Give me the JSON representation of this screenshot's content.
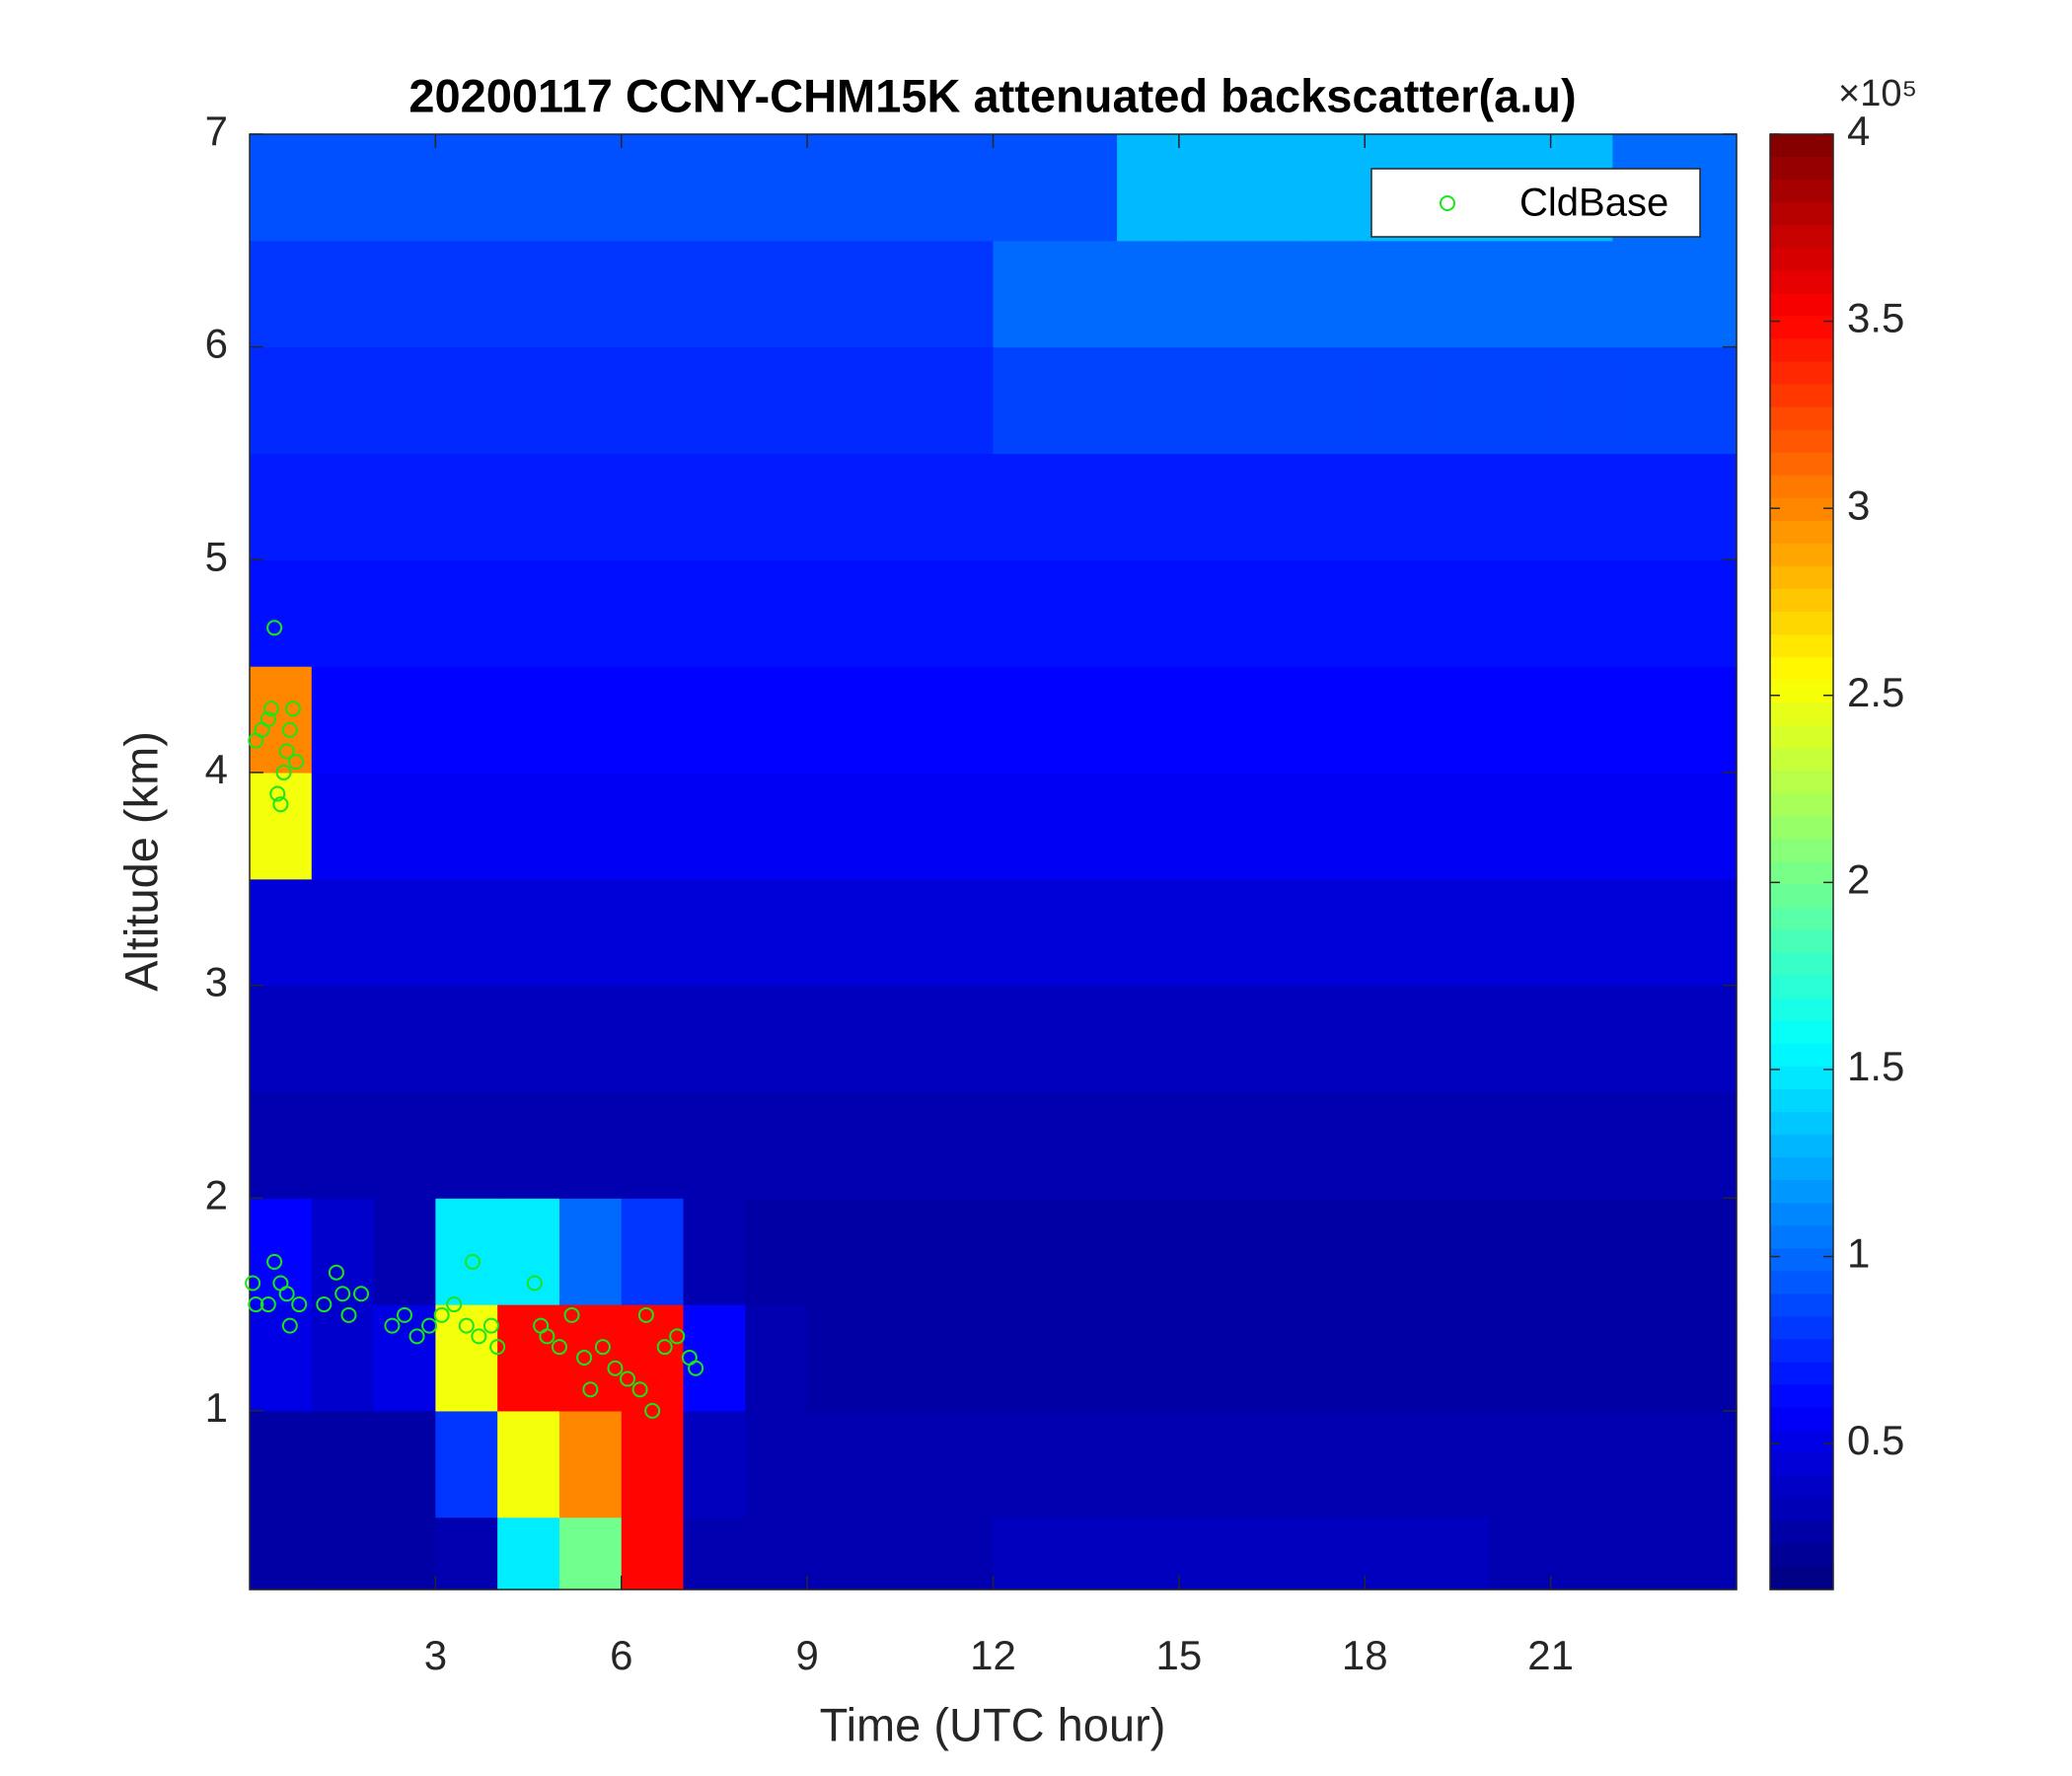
{
  "chart_data": {
    "type": "heatmap",
    "title": "20200117 CCNY-CHM15K attenuated backscatter(a.u)",
    "xlabel": "Time (UTC hour)",
    "ylabel": "Altitude (km)",
    "xlim": [
      0,
      24
    ],
    "ylim": [
      0.16,
      7
    ],
    "xticks": [
      3,
      6,
      9,
      12,
      15,
      18,
      21
    ],
    "yticks": [
      1,
      2,
      3,
      4,
      5,
      6,
      7
    ],
    "xbins": [
      0,
      1,
      2,
      3,
      4,
      5,
      6,
      7,
      8,
      9,
      10,
      11,
      12,
      13,
      14,
      15,
      16,
      17,
      18,
      19,
      20,
      21,
      22,
      23,
      24
    ],
    "ybins": [
      0.16,
      0.5,
      1,
      1.5,
      2,
      2.5,
      3,
      3.5,
      4,
      4.5,
      5,
      5.5,
      6,
      6.5,
      7
    ],
    "z": [
      [
        0.25,
        0.25,
        0.25,
        0.3,
        1.5,
        2,
        3.5,
        0.3,
        0.3,
        0.3,
        0.3,
        0.3,
        0.35,
        0.35,
        0.35,
        0.35,
        0.35,
        0.35,
        0.35,
        0.35,
        0.3,
        0.3,
        0.3,
        0.3
      ],
      [
        0.25,
        0.25,
        0.25,
        0.8,
        2.5,
        3,
        3.5,
        0.35,
        0.3,
        0.3,
        0.3,
        0.3,
        0.3,
        0.3,
        0.3,
        0.3,
        0.3,
        0.3,
        0.3,
        0.3,
        0.3,
        0.3,
        0.3,
        0.3
      ],
      [
        0.5,
        0.4,
        0.5,
        2.5,
        3.5,
        3.5,
        3.5,
        0.6,
        0.3,
        0.25,
        0.25,
        0.25,
        0.25,
        0.25,
        0.25,
        0.25,
        0.25,
        0.25,
        0.25,
        0.25,
        0.25,
        0.25,
        0.25,
        0.25
      ],
      [
        0.6,
        0.4,
        0.3,
        1.5,
        1.5,
        1,
        0.8,
        0.3,
        0.25,
        0.25,
        0.25,
        0.25,
        0.25,
        0.25,
        0.25,
        0.25,
        0.25,
        0.25,
        0.25,
        0.25,
        0.25,
        0.25,
        0.25,
        0.25
      ],
      [
        0.3,
        0.3,
        0.3,
        0.3,
        0.3,
        0.3,
        0.3,
        0.3,
        0.3,
        0.3,
        0.3,
        0.3,
        0.3,
        0.3,
        0.3,
        0.3,
        0.3,
        0.3,
        0.3,
        0.3,
        0.3,
        0.3,
        0.3,
        0.3
      ],
      [
        0.35,
        0.35,
        0.35,
        0.35,
        0.35,
        0.35,
        0.35,
        0.35,
        0.35,
        0.35,
        0.35,
        0.35,
        0.35,
        0.35,
        0.35,
        0.35,
        0.35,
        0.35,
        0.35,
        0.35,
        0.35,
        0.35,
        0.35,
        0.35
      ],
      [
        0.45,
        0.45,
        0.45,
        0.45,
        0.45,
        0.45,
        0.45,
        0.45,
        0.45,
        0.45,
        0.45,
        0.45,
        0.45,
        0.45,
        0.45,
        0.45,
        0.45,
        0.45,
        0.45,
        0.45,
        0.45,
        0.45,
        0.45,
        0.45
      ],
      [
        2.5,
        0.55,
        0.55,
        0.55,
        0.55,
        0.55,
        0.55,
        0.55,
        0.55,
        0.55,
        0.55,
        0.55,
        0.55,
        0.55,
        0.55,
        0.55,
        0.55,
        0.55,
        0.55,
        0.55,
        0.55,
        0.55,
        0.55,
        0.55
      ],
      [
        3,
        0.6,
        0.6,
        0.6,
        0.6,
        0.6,
        0.6,
        0.6,
        0.6,
        0.6,
        0.6,
        0.6,
        0.6,
        0.6,
        0.6,
        0.6,
        0.6,
        0.6,
        0.6,
        0.6,
        0.6,
        0.6,
        0.6,
        0.6
      ],
      [
        0.65,
        0.65,
        0.65,
        0.65,
        0.65,
        0.65,
        0.65,
        0.65,
        0.65,
        0.65,
        0.65,
        0.65,
        0.65,
        0.65,
        0.65,
        0.65,
        0.65,
        0.65,
        0.65,
        0.65,
        0.65,
        0.65,
        0.65,
        0.65
      ],
      [
        0.7,
        0.7,
        0.7,
        0.7,
        0.7,
        0.7,
        0.7,
        0.7,
        0.7,
        0.7,
        0.7,
        0.7,
        0.7,
        0.7,
        0.7,
        0.7,
        0.7,
        0.7,
        0.7,
        0.7,
        0.7,
        0.7,
        0.7,
        0.7
      ],
      [
        0.75,
        0.75,
        0.75,
        0.75,
        0.75,
        0.75,
        0.75,
        0.75,
        0.75,
        0.75,
        0.75,
        0.75,
        0.85,
        0.85,
        0.85,
        0.85,
        0.85,
        0.85,
        0.85,
        0.85,
        0.85,
        0.85,
        0.85,
        0.85
      ],
      [
        0.8,
        0.8,
        0.8,
        0.8,
        0.8,
        0.8,
        0.8,
        0.8,
        0.8,
        0.8,
        0.8,
        0.8,
        1,
        1,
        1,
        1,
        1,
        1,
        1,
        1,
        1,
        1,
        1,
        1
      ],
      [
        0.9,
        0.9,
        0.9,
        0.9,
        0.9,
        0.9,
        0.9,
        0.9,
        0.9,
        0.9,
        0.9,
        0.9,
        0.9,
        0.9,
        1.3,
        1.3,
        1.3,
        1.3,
        1.3,
        1.3,
        1.3,
        1.3,
        1,
        1
      ]
    ],
    "colormap": "jet",
    "clim": [
      0.11,
      4
    ],
    "cticks": [
      0.5,
      1,
      1.5,
      2,
      2.5,
      3,
      3.5,
      4
    ],
    "colorbar_exponent": "×10⁵",
    "legend": "upper right",
    "series": [
      {
        "name": "CldBase",
        "type": "scatter",
        "color": "#19e619",
        "x": [
          0.1,
          0.2,
          0.3,
          0.35,
          0.45,
          0.5,
          0.55,
          0.6,
          0.65,
          0.7,
          0.75,
          0.4,
          0.05,
          0.1,
          0.3,
          0.4,
          0.5,
          0.6,
          0.65,
          0.8,
          1.2,
          1.4,
          1.5,
          1.6,
          1.8,
          2.3,
          2.5,
          2.7,
          2.9,
          3.1,
          3.3,
          3.5,
          3.6,
          3.7,
          3.9,
          4.0,
          4.6,
          4.7,
          4.8,
          5.0,
          5.2,
          5.4,
          5.5,
          5.7,
          5.9,
          6.1,
          6.3,
          6.4,
          6.5,
          6.7,
          6.9,
          7.1,
          7.2
        ],
        "y": [
          4.15,
          4.2,
          4.25,
          4.3,
          3.9,
          3.85,
          4.0,
          4.1,
          4.2,
          4.3,
          4.05,
          4.68,
          1.6,
          1.5,
          1.5,
          1.7,
          1.6,
          1.55,
          1.4,
          1.5,
          1.5,
          1.65,
          1.55,
          1.45,
          1.55,
          1.4,
          1.45,
          1.35,
          1.4,
          1.45,
          1.5,
          1.4,
          1.7,
          1.35,
          1.4,
          1.3,
          1.6,
          1.4,
          1.35,
          1.3,
          1.45,
          1.25,
          1.1,
          1.3,
          1.2,
          1.15,
          1.1,
          1.45,
          1.0,
          1.3,
          1.35,
          1.25,
          1.2
        ]
      }
    ]
  }
}
